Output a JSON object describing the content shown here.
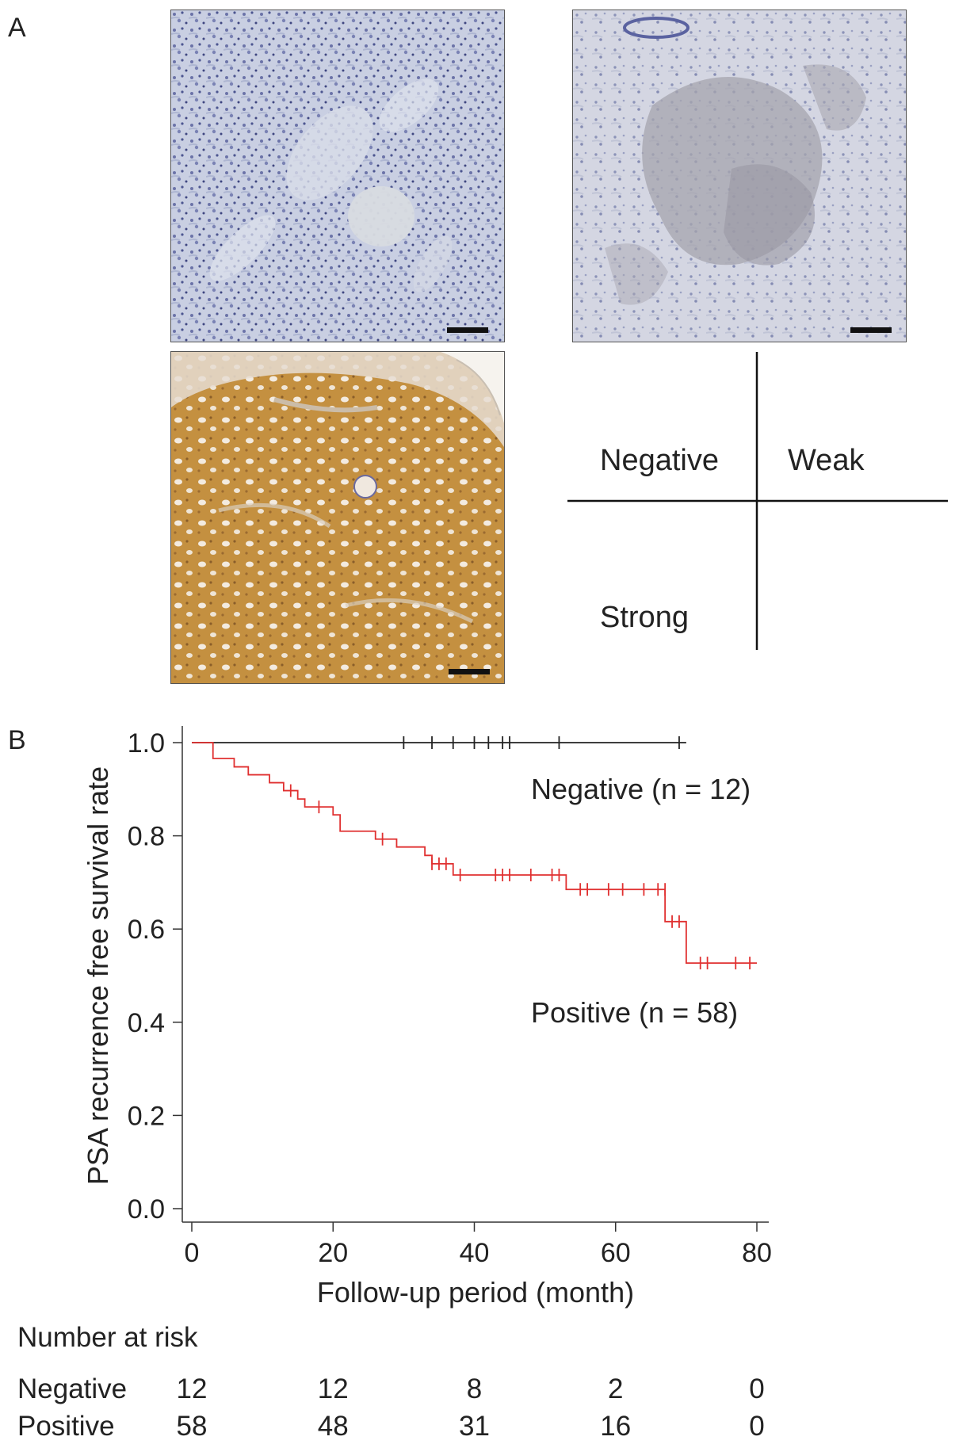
{
  "panel_a": {
    "label": "A",
    "quadrant_labels": {
      "negative": "Negative",
      "weak": "Weak",
      "strong": "Strong"
    }
  },
  "panel_b": {
    "label": "B"
  },
  "chart_data": {
    "type": "line",
    "title": "",
    "xlabel": "Follow-up period (month)",
    "ylabel": "PSA recurrence free survival rate",
    "xlim": [
      0,
      80
    ],
    "ylim": [
      0.0,
      1.0
    ],
    "xticks": [
      "0",
      "20",
      "40",
      "60",
      "80"
    ],
    "yticks": [
      "0.0",
      "0.2",
      "0.4",
      "0.6",
      "0.8",
      "1.0"
    ],
    "grid": false,
    "series": [
      {
        "name": "Negative (n = 12)",
        "color": "#222222",
        "steps": [
          [
            0,
            1.0
          ],
          [
            70,
            1.0
          ]
        ],
        "censored": [
          [
            30,
            1.0
          ],
          [
            34,
            1.0
          ],
          [
            37,
            1.0
          ],
          [
            40,
            1.0
          ],
          [
            42,
            1.0
          ],
          [
            44,
            1.0
          ],
          [
            45,
            1.0
          ],
          [
            52,
            1.0
          ],
          [
            69,
            1.0
          ]
        ]
      },
      {
        "name": "Positive (n = 58)",
        "color": "#e03030",
        "steps": [
          [
            0,
            1.0
          ],
          [
            3,
            0.966
          ],
          [
            6,
            0.948
          ],
          [
            8,
            0.931
          ],
          [
            11,
            0.914
          ],
          [
            13,
            0.897
          ],
          [
            15,
            0.879
          ],
          [
            16,
            0.862
          ],
          [
            20,
            0.845
          ],
          [
            21,
            0.81
          ],
          [
            26,
            0.793
          ],
          [
            29,
            0.776
          ],
          [
            33,
            0.758
          ],
          [
            34,
            0.74
          ],
          [
            37,
            0.716
          ],
          [
            53,
            0.685
          ],
          [
            67,
            0.616
          ],
          [
            70,
            0.527
          ],
          [
            80,
            0.527
          ]
        ],
        "censored": [
          [
            14,
            0.897
          ],
          [
            18,
            0.862
          ],
          [
            27,
            0.793
          ],
          [
            34,
            0.74
          ],
          [
            35,
            0.74
          ],
          [
            36,
            0.74
          ],
          [
            38,
            0.716
          ],
          [
            43,
            0.716
          ],
          [
            44,
            0.716
          ],
          [
            45,
            0.716
          ],
          [
            48,
            0.716
          ],
          [
            51,
            0.716
          ],
          [
            52,
            0.716
          ],
          [
            55,
            0.685
          ],
          [
            56,
            0.685
          ],
          [
            59,
            0.685
          ],
          [
            61,
            0.685
          ],
          [
            64,
            0.685
          ],
          [
            66,
            0.685
          ],
          [
            67,
            0.685
          ],
          [
            68,
            0.616
          ],
          [
            69,
            0.616
          ],
          [
            72,
            0.527
          ],
          [
            73,
            0.527
          ],
          [
            77,
            0.527
          ],
          [
            79,
            0.527
          ]
        ]
      }
    ]
  },
  "risk_table": {
    "title": "Number at risk",
    "rows": [
      {
        "label": "Negative",
        "values": [
          "12",
          "12",
          "8",
          "2",
          "0"
        ]
      },
      {
        "label": "Positive",
        "values": [
          "58",
          "48",
          "31",
          "16",
          "0"
        ]
      }
    ]
  }
}
